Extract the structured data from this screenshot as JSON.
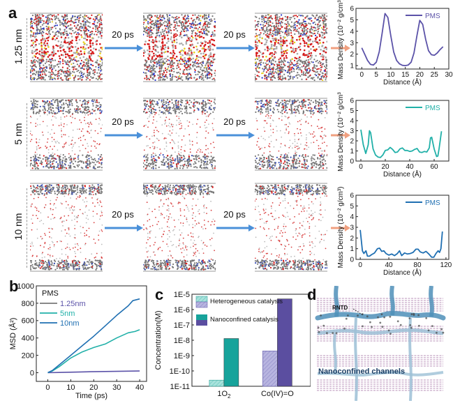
{
  "panels": {
    "a": {
      "letter": "a"
    },
    "b": {
      "letter": "b"
    },
    "c": {
      "letter": "c"
    },
    "d": {
      "letter": "d"
    }
  },
  "rows": [
    {
      "size_label": "1.25 nm",
      "arrow1": "20 ps",
      "arrow2": "20 ps",
      "density": "dense"
    },
    {
      "size_label": "5 nm",
      "arrow1": "20 ps",
      "arrow2": "20 ps",
      "density": "medium"
    },
    {
      "size_label": "10 nm",
      "arrow1": "20 ps",
      "arrow2": "20 ps",
      "density": "sparse"
    }
  ],
  "colors": {
    "purple": "#5B52A8",
    "teal": "#20B0A8",
    "blue": "#1F6FB2",
    "gray": "#777777",
    "arrow_blue": "#4A90D9",
    "arrow_orange": "#F0A080",
    "hetero_teal": "#7ED0C8",
    "hetero_purple": "#9E9AD0",
    "nano_teal": "#17A39B",
    "nano_purple": "#5B4EA0"
  },
  "panel_d": {
    "label_rntd": "RNTD",
    "label_channels": "Nanoconfined channels"
  },
  "chart_data": [
    {
      "id": "density-1p25",
      "type": "line",
      "title": "",
      "xlabel": "Distance (Å)",
      "ylabel": "Mass Density (10⁻² g/cm³)",
      "xlim": [
        -2,
        30
      ],
      "ylim": [
        0.7,
        6
      ],
      "xticks": [
        0,
        5,
        10,
        15,
        20,
        25,
        30
      ],
      "yticks": [
        1,
        2,
        3,
        4,
        5,
        6
      ],
      "legend": "PMS",
      "legend_position": "top-right",
      "series": [
        {
          "name": "PMS",
          "color": "#5B52A8",
          "x": [
            0,
            1,
            2,
            3,
            4,
            5,
            6,
            7,
            8,
            9,
            10,
            11,
            12,
            13,
            14,
            15,
            16,
            17,
            18,
            19,
            20,
            21,
            22,
            23,
            24,
            25,
            26,
            27,
            28
          ],
          "y": [
            2.55,
            2.0,
            1.45,
            1.1,
            1.05,
            1.3,
            2.2,
            3.8,
            5.55,
            5.2,
            3.6,
            2.2,
            1.45,
            1.15,
            1.02,
            1.0,
            1.05,
            1.3,
            2.1,
            3.6,
            4.95,
            4.6,
            3.3,
            2.3,
            1.95,
            1.9,
            2.1,
            2.4,
            2.65
          ]
        }
      ]
    },
    {
      "id": "density-5",
      "type": "line",
      "xlabel": "Distance (Å)",
      "ylabel": "Mass Density (10⁻² g/cm³)",
      "xlim": [
        -4,
        72
      ],
      "ylim": [
        0,
        6
      ],
      "xticks": [
        0,
        20,
        40,
        60
      ],
      "yticks": [
        0,
        1,
        2,
        3,
        4,
        5,
        6
      ],
      "legend": "PMS",
      "legend_position": "top-right",
      "series": [
        {
          "name": "PMS",
          "color": "#20B0A8",
          "x": [
            0,
            2,
            4,
            6,
            7,
            8,
            10,
            12,
            14,
            16,
            18,
            20,
            22,
            24,
            26,
            28,
            30,
            32,
            34,
            36,
            38,
            40,
            42,
            44,
            46,
            48,
            50,
            52,
            54,
            56,
            57,
            58,
            60,
            62,
            63,
            64,
            66
          ],
          "y": [
            3.1,
            1.6,
            0.75,
            1.6,
            3.0,
            2.8,
            1.2,
            0.6,
            0.4,
            0.35,
            0.6,
            1.05,
            1.1,
            1.35,
            1.15,
            0.85,
            0.9,
            1.2,
            1.3,
            1.05,
            1.05,
            0.95,
            1.0,
            1.15,
            1.25,
            0.9,
            0.85,
            0.95,
            0.9,
            1.3,
            2.3,
            2.35,
            1.2,
            0.45,
            0.5,
            1.2,
            2.95
          ]
        }
      ]
    },
    {
      "id": "density-10",
      "type": "line",
      "xlabel": "Distance (Å)",
      "ylabel": "Mass Density (10⁻² g/cm³)",
      "xlim": [
        -6,
        124
      ],
      "ylim": [
        0,
        6
      ],
      "xticks": [
        0,
        40,
        80,
        120
      ],
      "yticks": [
        0,
        1,
        2,
        3,
        4,
        5,
        6
      ],
      "legend": "PMS",
      "legend_position": "top-right",
      "series": [
        {
          "name": "PMS",
          "color": "#1F6FB2",
          "x": [
            0,
            3,
            5,
            8,
            10,
            13,
            16,
            20,
            24,
            27,
            30,
            33,
            36,
            40,
            44,
            48,
            52,
            55,
            58,
            62,
            66,
            70,
            74,
            78,
            81,
            84,
            88,
            92,
            96,
            100,
            103,
            106,
            109,
            111,
            113,
            115
          ],
          "y": [
            2.75,
            0.8,
            0.55,
            0.8,
            0.3,
            0.3,
            0.45,
            0.6,
            1.0,
            1.05,
            0.75,
            0.8,
            0.55,
            0.4,
            0.5,
            0.35,
            0.55,
            0.8,
            0.35,
            0.6,
            0.5,
            0.55,
            0.65,
            0.95,
            0.95,
            0.7,
            0.6,
            0.75,
            0.5,
            0.2,
            0.2,
            0.55,
            0.8,
            0.65,
            1.0,
            2.6
          ]
        }
      ]
    },
    {
      "id": "msd",
      "type": "line",
      "title": "",
      "xlabel": "Time (ps)",
      "ylabel": "MSD (Å²)",
      "xlim": [
        -5,
        43
      ],
      "ylim": [
        -100,
        1000
      ],
      "xticks": [
        0,
        10,
        20,
        30,
        40
      ],
      "yticks": [
        0,
        200,
        400,
        600,
        800,
        1000
      ],
      "legend_title": "PMS",
      "legend_position": "top-left",
      "series": [
        {
          "name": "1.25nm",
          "color": "#5B52A8",
          "legend_line_color": "#777777",
          "x": [
            0,
            5,
            10,
            15,
            20,
            25,
            30,
            35,
            40
          ],
          "y": [
            0,
            3,
            6,
            9,
            12,
            14,
            16,
            18,
            20
          ]
        },
        {
          "name": "5nm",
          "color": "#20B0A8",
          "x": [
            0,
            2,
            5,
            10,
            15,
            20,
            25,
            30,
            35,
            38,
            40
          ],
          "y": [
            0,
            20,
            70,
            170,
            240,
            290,
            330,
            400,
            460,
            475,
            495
          ]
        },
        {
          "name": "10nm",
          "color": "#1F6FB2",
          "x": [
            0,
            2,
            5,
            10,
            15,
            20,
            25,
            30,
            35,
            37,
            40
          ],
          "y": [
            0,
            25,
            90,
            200,
            310,
            420,
            540,
            660,
            770,
            830,
            850
          ]
        }
      ]
    },
    {
      "id": "concentration",
      "type": "bar",
      "xlabel": "",
      "ylabel": "Concentration(M)",
      "yscale": "log",
      "ylim": [
        1e-11,
        1e-05
      ],
      "yticks": [
        "1E-11",
        "1E-10",
        "1E-9",
        "1E-8",
        "1E-7",
        "1E-6",
        "1E-5"
      ],
      "categories": [
        "1O₂",
        "Co(IV)=O"
      ],
      "legend_position": "top-left",
      "series": [
        {
          "name": "Heterogeneous catalysis",
          "colors": [
            "#7ED0C8",
            "#9E9AD0"
          ],
          "pattern": "hatched",
          "values": [
            2.5e-11,
            2e-09
          ]
        },
        {
          "name": "Nanoconfined catalysis",
          "colors": [
            "#17A39B",
            "#5B4EA0"
          ],
          "pattern": "solid",
          "values": [
            1.3e-08,
            5e-06
          ]
        }
      ]
    }
  ]
}
